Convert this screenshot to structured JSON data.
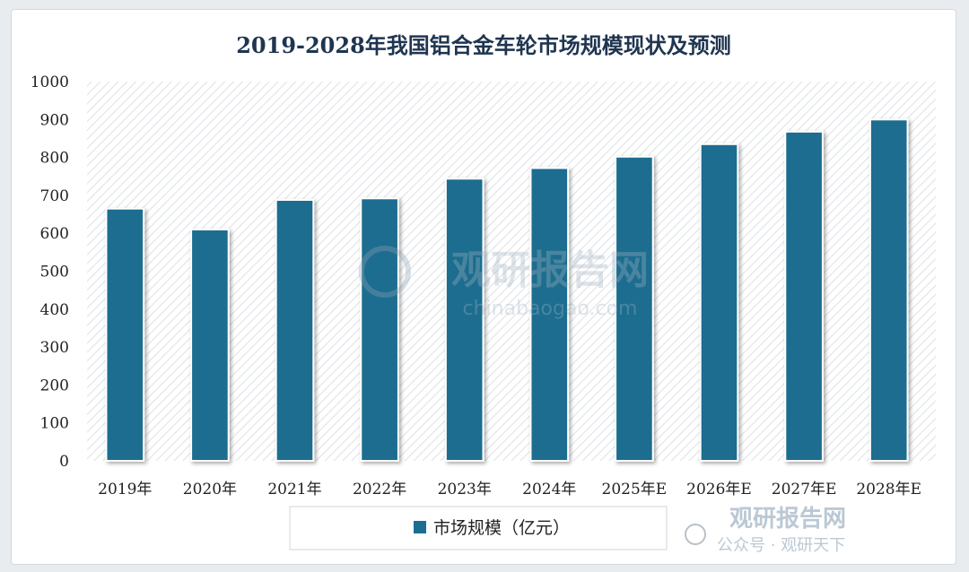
{
  "chart_data": {
    "type": "bar",
    "title": "2019-2028年我国铝合金车轮市场规模现状及预测",
    "categories": [
      "2019年",
      "2020年",
      "2021年",
      "2022年",
      "2023年",
      "2024年",
      "2025年E",
      "2026年E",
      "2027年E",
      "2028年E"
    ],
    "series": [
      {
        "name": "市场规模（亿元）",
        "values": [
          665,
          610,
          688,
          692,
          744,
          772,
          802,
          835,
          868,
          900
        ]
      }
    ],
    "yticks": [
      "0",
      "100",
      "200",
      "300",
      "400",
      "500",
      "600",
      "700",
      "800",
      "900",
      "1000"
    ],
    "ylim": [
      0,
      1000
    ],
    "xlabel": "",
    "ylabel": "",
    "grid": false,
    "legend_position": "bottom-center",
    "bar_color": "#1c6d8f",
    "background": "diagonal-hatch"
  },
  "watermark": {
    "brand": "观研报告网",
    "domain": "chinabaogao.com",
    "corner_brand": "观研报告网",
    "corner_label": "公众号 · 观研天下"
  }
}
